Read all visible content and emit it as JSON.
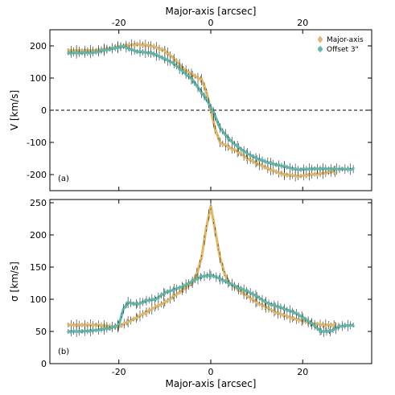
{
  "chart_data": [
    {
      "type": "line",
      "panel_label": "(a)",
      "xlabel_top": "Major-axis [arcsec]",
      "ylabel": "V [km/s]",
      "xlim": [
        -35,
        35
      ],
      "ylim": [
        -250,
        250
      ],
      "x_ticks": [
        -20,
        0,
        20
      ],
      "y_ticks": [
        -200,
        -100,
        0,
        100,
        200
      ],
      "zero_line": true,
      "legend_position": "top-right",
      "series": [
        {
          "name": "Major-axis",
          "color": "#e0b86a",
          "x": [
            -31,
            -28,
            -25,
            -22,
            -19,
            -16,
            -13,
            -10,
            -8,
            -6,
            -4,
            -2,
            -1,
            0,
            1,
            2,
            4,
            6,
            8,
            10,
            13,
            16,
            19,
            22,
            25,
            27
          ],
          "y": [
            185,
            185,
            186,
            192,
            200,
            205,
            200,
            185,
            160,
            130,
            110,
            95,
            60,
            0,
            -60,
            -100,
            -115,
            -130,
            -150,
            -165,
            -185,
            -200,
            -205,
            -200,
            -195,
            -190
          ]
        },
        {
          "name": "Offset 3\"",
          "color": "#5fb8ab",
          "x": [
            -31,
            -28,
            -25,
            -22,
            -19,
            -16,
            -13,
            -10,
            -8,
            -6,
            -4,
            -2,
            -1,
            0,
            1,
            2,
            4,
            6,
            8,
            10,
            13,
            16,
            19,
            22,
            25,
            28,
            31
          ],
          "y": [
            178,
            178,
            180,
            190,
            198,
            182,
            178,
            160,
            145,
            120,
            95,
            55,
            35,
            10,
            -20,
            -55,
            -90,
            -115,
            -135,
            -150,
            -165,
            -175,
            -185,
            -182,
            -182,
            -183,
            -183
          ]
        }
      ]
    },
    {
      "type": "line",
      "panel_label": "(b)",
      "xlabel": "Major-axis [arcsec]",
      "ylabel": "σ [km/s]",
      "xlim": [
        -35,
        35
      ],
      "ylim": [
        0,
        255
      ],
      "x_ticks": [
        -20,
        0,
        20
      ],
      "y_ticks": [
        0,
        50,
        100,
        150,
        200,
        250
      ],
      "series": [
        {
          "name": "Major-axis",
          "color": "#e0b86a",
          "x": [
            -31,
            -28,
            -25,
            -22,
            -20,
            -18,
            -16,
            -14,
            -12,
            -10,
            -8,
            -6,
            -4,
            -3,
            -2,
            -1,
            0,
            1,
            2,
            3,
            4,
            6,
            8,
            10,
            12,
            14,
            16,
            18,
            20,
            22,
            25,
            27
          ],
          "y": [
            60,
            60,
            60,
            58,
            57,
            65,
            72,
            80,
            88,
            95,
            105,
            115,
            125,
            140,
            165,
            210,
            245,
            205,
            165,
            140,
            125,
            115,
            105,
            95,
            88,
            80,
            75,
            70,
            67,
            62,
            60,
            60
          ]
        },
        {
          "name": "Offset 3\"",
          "color": "#5fb8ab",
          "x": [
            -31,
            -28,
            -25,
            -22,
            -20,
            -19,
            -18,
            -16,
            -14,
            -12,
            -10,
            -8,
            -6,
            -4,
            -2,
            0,
            2,
            4,
            6,
            8,
            10,
            12,
            14,
            16,
            18,
            20,
            22,
            24,
            26,
            28,
            31
          ],
          "y": [
            50,
            50,
            52,
            55,
            60,
            85,
            95,
            92,
            98,
            100,
            110,
            115,
            120,
            128,
            135,
            138,
            132,
            125,
            118,
            112,
            105,
            95,
            90,
            85,
            80,
            72,
            62,
            50,
            50,
            58,
            60
          ]
        }
      ]
    }
  ]
}
